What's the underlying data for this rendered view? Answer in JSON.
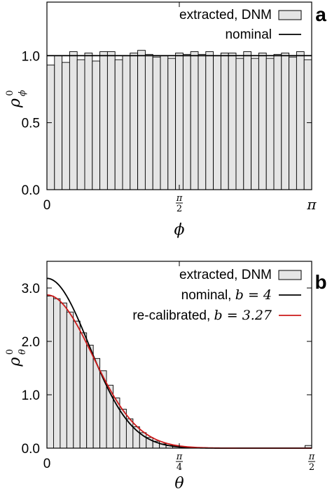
{
  "chart_data": [
    {
      "type": "bar",
      "panel_label": "a",
      "xlabel": "ϕ",
      "ylabel_base": "ρ",
      "ylabel_sup": "0",
      "ylabel_sub": "ϕ",
      "xlim": [
        0,
        3.14159
      ],
      "ylim": [
        0,
        1.4
      ],
      "xticks": [
        {
          "value": 0,
          "label": "0"
        },
        {
          "value": 1.5708,
          "num": "π",
          "den": "2"
        },
        {
          "value": 3.14159,
          "label": "π"
        }
      ],
      "yticks": [
        {
          "value": 0,
          "label": "0.0"
        },
        {
          "value": 0.5,
          "label": "0.5"
        },
        {
          "value": 1.0,
          "label": "1.0"
        }
      ],
      "legend_position": "top-right",
      "series": [
        {
          "name": "extracted, DNM",
          "kind": "histogram",
          "color": "#e5e5e5",
          "edge": "#000000",
          "values": [
            0.93,
            1.0,
            0.95,
            1.03,
            0.97,
            1.02,
            0.96,
            1.03,
            1.03,
            0.97,
            1.0,
            1.02,
            1.04,
            1.01,
            0.99,
            1.0,
            0.98,
            1.02,
            1.01,
            1.03,
            1.01,
            1.03,
            1.0,
            1.02,
            1.02,
            0.98,
            1.03,
            0.98,
            1.02,
            0.98,
            1.01,
            1.02,
            0.99,
            1.03,
            0.97
          ]
        },
        {
          "name": "nominal",
          "kind": "line",
          "color": "#000000",
          "x": [
            0,
            3.14159
          ],
          "y": [
            1.0,
            1.0
          ]
        }
      ]
    },
    {
      "type": "bar",
      "panel_label": "b",
      "xlabel": "θ",
      "ylabel_base": "ρ",
      "ylabel_sup": "0",
      "ylabel_sub": "θ",
      "xlim": [
        0,
        1.5708
      ],
      "ylim": [
        0,
        3.5
      ],
      "xticks": [
        {
          "value": 0,
          "label": "0"
        },
        {
          "value": 0.7854,
          "num": "π",
          "den": "4"
        },
        {
          "value": 1.5708,
          "num": "π",
          "den": "2"
        }
      ],
      "yticks": [
        {
          "value": 0,
          "label": "0.0"
        },
        {
          "value": 1.0,
          "label": "1.0"
        },
        {
          "value": 2.0,
          "label": "2.0"
        },
        {
          "value": 3.0,
          "label": "3.0"
        }
      ],
      "legend_position": "top-right",
      "series": [
        {
          "name": "extracted, DNM",
          "kind": "histogram",
          "color": "#e5e5e5",
          "edge": "#000000",
          "values": [
            2.85,
            2.8,
            2.72,
            2.55,
            2.38,
            2.16,
            1.93,
            1.68,
            1.45,
            1.18,
            0.94,
            0.73,
            0.55,
            0.4,
            0.29,
            0.2,
            0.13,
            0.08,
            0.05,
            0.03,
            0.02,
            0.01,
            0.01,
            0.01,
            0.0,
            0.0,
            0.0,
            0.0,
            0.0,
            0.0,
            0.0,
            0.0,
            0.0,
            0.0,
            0.0,
            0.0,
            0.0,
            0.0,
            0.0,
            0.05
          ]
        },
        {
          "name": "nominal, ",
          "name_math": "b = 4",
          "kind": "curve",
          "color": "#000000",
          "amplitude": 3.18,
          "width": 0.25
        },
        {
          "name": "re-calibrated, ",
          "name_math": "b = 3.27",
          "kind": "curve",
          "color": "#cc1a1a",
          "amplitude": 2.87,
          "width": 0.27
        }
      ]
    }
  ]
}
